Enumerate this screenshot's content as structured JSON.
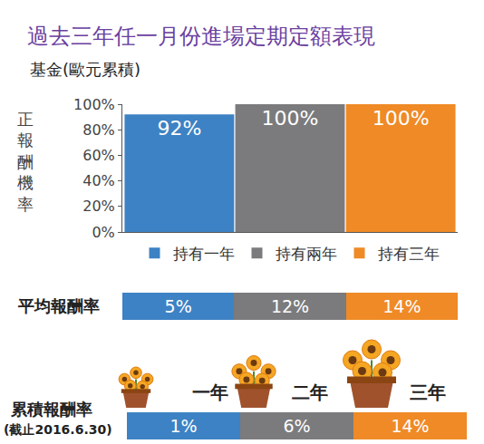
{
  "chart_data": {
    "type": "bar",
    "title": "過去三年任一月份進場定期定額表現",
    "subtitle": "基金(歐元累積)",
    "y_label": "正報酬機率",
    "categories": [
      null
    ],
    "series": [
      {
        "name": "持有一年",
        "color": "#3d82c4",
        "values": [
          92
        ],
        "value_labels": [
          "92%"
        ]
      },
      {
        "name": "持有兩年",
        "color": "#7b7b7d",
        "values": [
          100
        ],
        "value_labels": [
          "100%"
        ]
      },
      {
        "name": "持有三年",
        "color": "#ef8a26",
        "values": [
          100
        ],
        "value_labels": [
          "100%"
        ]
      }
    ],
    "ylim": [
      0,
      100
    ],
    "yticks": [
      {
        "value": 0,
        "label": "0%"
      },
      {
        "value": 20,
        "label": "20%"
      },
      {
        "value": 40,
        "label": "40%"
      },
      {
        "value": 60,
        "label": "60%"
      },
      {
        "value": 80,
        "label": "80%"
      },
      {
        "value": 100,
        "label": "100%"
      }
    ],
    "grid": false,
    "data_labels": true,
    "tick_labels": "y",
    "legend": "bottom"
  },
  "average_return": {
    "label": "平均報酬率",
    "cells": [
      "5%",
      "12%",
      "14%"
    ]
  },
  "cumulative_return": {
    "label": "累積報酬率",
    "note": "(截止2016.6.30)",
    "periods": [
      "一年",
      "二年",
      "三年"
    ],
    "cells": [
      "1%",
      "6%",
      "14%"
    ]
  }
}
